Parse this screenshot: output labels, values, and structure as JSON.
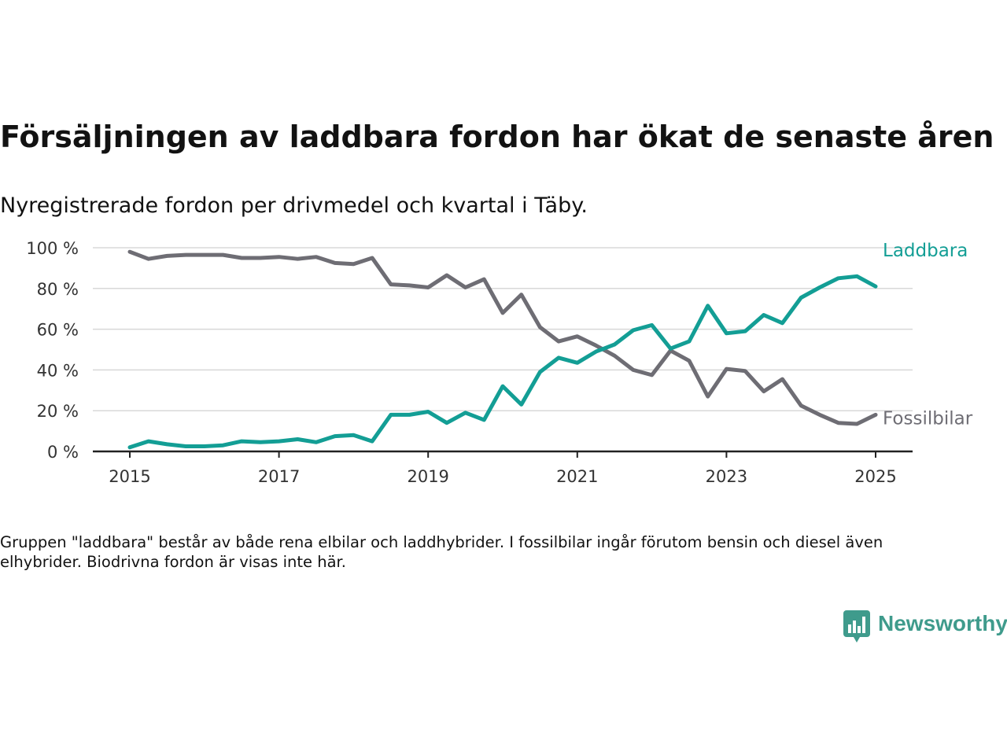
{
  "title": "Försäljningen av laddbara fordon har ökat de senaste åren",
  "subtitle": "Nyregistrerade fordon per drivmedel och kvartal i Täby.",
  "note": "Gruppen \"laddbara\" består av både rena elbilar och laddhybrider. I fossilbilar ingår förutom bensin och diesel även elhybrider. Biodrivna fordon är visas inte här.",
  "brand": {
    "name": "Newsworthy",
    "color": "#3f9b8c",
    "logo_icon": "bar-chart-speech-bubble-icon"
  },
  "colors": {
    "laddbara": "#139e95",
    "fossilbilar": "#6e6d74",
    "grid": "#d8d8d8",
    "axis": "#222222",
    "tick_text": "#333333"
  },
  "chart_data": {
    "type": "line",
    "title": "Försäljningen av laddbara fordon har ökat de senaste åren",
    "subtitle": "Nyregistrerade fordon per drivmedel och kvartal i Täby.",
    "xlabel": "",
    "ylabel": "",
    "xlim": [
      2014.75,
      2025.25
    ],
    "ylim": [
      0,
      100
    ],
    "x_ticks": [
      2015,
      2017,
      2019,
      2021,
      2023,
      2025
    ],
    "y_ticks": [
      0,
      20,
      40,
      60,
      80,
      100
    ],
    "y_tick_labels": [
      "0 %",
      "20 %",
      "40 %",
      "60 %",
      "80 %",
      "100 %"
    ],
    "grid": "horizontal",
    "legend": "direct labels at line ends (right)",
    "x": [
      "2015-Q1",
      "2015-Q2",
      "2015-Q3",
      "2015-Q4",
      "2016-Q1",
      "2016-Q2",
      "2016-Q3",
      "2016-Q4",
      "2017-Q1",
      "2017-Q2",
      "2017-Q3",
      "2017-Q4",
      "2018-Q1",
      "2018-Q2",
      "2018-Q3",
      "2018-Q4",
      "2019-Q1",
      "2019-Q2",
      "2019-Q3",
      "2019-Q4",
      "2020-Q1",
      "2020-Q2",
      "2020-Q3",
      "2020-Q4",
      "2021-Q1",
      "2021-Q2",
      "2021-Q3",
      "2021-Q4",
      "2022-Q1",
      "2022-Q2",
      "2022-Q3",
      "2022-Q4",
      "2023-Q1",
      "2023-Q2",
      "2023-Q3",
      "2023-Q4",
      "2024-Q1",
      "2024-Q2",
      "2024-Q3",
      "2024-Q4",
      "2025-Q1"
    ],
    "series": [
      {
        "name": "Laddbara",
        "values": [
          2,
          5,
          3.5,
          2.5,
          2.5,
          3,
          5,
          4.5,
          5,
          6,
          4.5,
          7.5,
          8,
          5,
          18,
          18,
          19.5,
          14,
          19,
          15.5,
          32,
          23,
          39,
          46,
          43.5,
          49,
          52.5,
          59.5,
          62,
          50.5,
          54,
          71.5,
          58,
          59,
          67,
          63,
          75.5,
          80.5,
          85,
          86,
          81
        ]
      },
      {
        "name": "Fossilbilar",
        "values": [
          98,
          94.5,
          96,
          96.5,
          96.5,
          96.5,
          95,
          95,
          95.5,
          94.5,
          95.5,
          92.5,
          92,
          95,
          82,
          81.5,
          80.5,
          86.5,
          80.5,
          84.5,
          68,
          77,
          61,
          54,
          56.5,
          52,
          47,
          40,
          37.5,
          49.5,
          44.5,
          27,
          40.5,
          39.5,
          29.5,
          35.5,
          22.5,
          18,
          14,
          13.5,
          18
        ]
      }
    ]
  }
}
